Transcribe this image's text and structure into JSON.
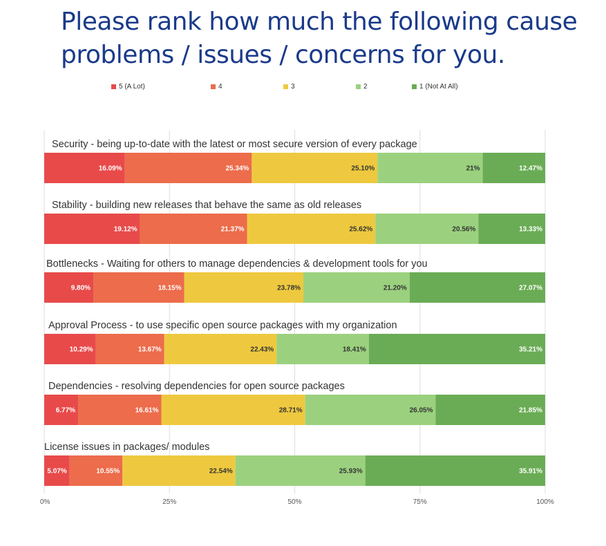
{
  "title_lines": [
    "Please rank how much the following cause",
    "problems / issues / concerns for you."
  ],
  "chart_data": {
    "type": "bar",
    "orientation": "horizontal",
    "stacked": true,
    "title": "Please rank how much the following cause problems / issues / concerns for you.",
    "categories": [
      "Security - being up-to-date with the latest or most secure version of every package",
      "Stability - building new releases that behave the same as old releases",
      "Bottlenecks - Waiting for others to manage dependencies & development tools for you",
      "Approval Process - to use specific open source packages with my organization",
      "Dependencies - resolving dependencies for open source packages",
      "License issues in packages/ modules"
    ],
    "series": [
      {
        "name": "5 (A Lot)",
        "color": "#e84a4a",
        "label_color": "#ffffff",
        "values": [
          16.09,
          19.12,
          9.8,
          10.29,
          6.77,
          5.07
        ],
        "labels": [
          "16.09%",
          "19.12%",
          "9.80%",
          "10.29%",
          "6.77%",
          "5.07%"
        ]
      },
      {
        "name": "4",
        "color": "#ec6c4b",
        "label_color": "#ffffff",
        "values": [
          25.34,
          21.37,
          18.15,
          13.67,
          16.61,
          10.55
        ],
        "labels": [
          "25.34%",
          "21.37%",
          "18.15%",
          "13.67%",
          "16.61%",
          "10.55%"
        ]
      },
      {
        "name": "3",
        "color": "#eec93f",
        "label_color": "#333333",
        "values": [
          25.1,
          25.62,
          23.78,
          22.43,
          28.71,
          22.54
        ],
        "labels": [
          "25.10%",
          "25.62%",
          "23.78%",
          "22.43%",
          "28.71%",
          "22.54%"
        ]
      },
      {
        "name": "2",
        "color": "#9bd17e",
        "label_color": "#333333",
        "values": [
          21,
          20.56,
          21.2,
          18.41,
          26.05,
          25.93
        ],
        "labels": [
          "21%",
          "20.56%",
          "21.20%",
          "18.41%",
          "26.05%",
          "25.93%"
        ]
      },
      {
        "name": "1 (Not At All)",
        "color": "#6aac55",
        "label_color": "#ffffff",
        "values": [
          12.47,
          13.33,
          27.07,
          35.21,
          21.85,
          35.91
        ],
        "labels": [
          "12.47%",
          "13.33%",
          "27.07%",
          "35.21%",
          "21.85%",
          "35.91%"
        ]
      }
    ],
    "xlim": [
      0,
      100
    ],
    "xticks": [
      "0%",
      "25%",
      "50%",
      "75%",
      "100%"
    ],
    "grid": true,
    "legend": "top"
  }
}
